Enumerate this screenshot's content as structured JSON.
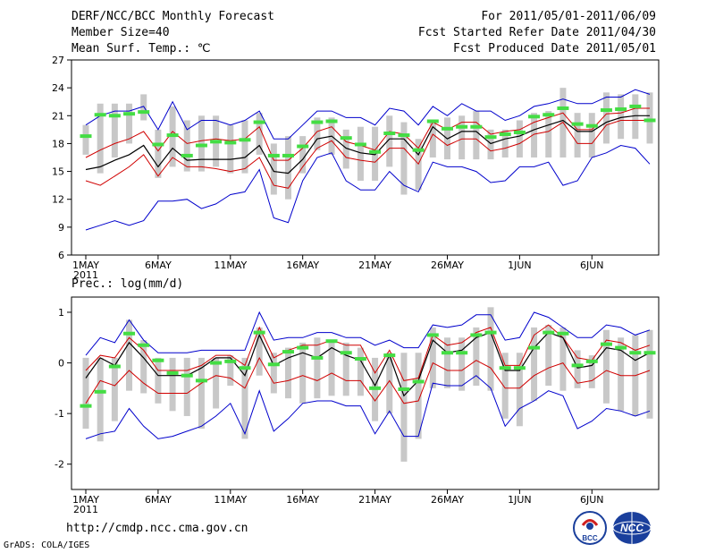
{
  "header": {
    "title": "DERF/NCC/BCC Monthly Forecast",
    "member_size": "Member Size=40",
    "variable_temp": "Mean Surf. Temp.: ℃",
    "period": "For 2011/05/01-2011/06/09",
    "fcst_started": "Fcst Started Refer Date 2011/04/30",
    "fcst_produced": "Fcst Produced Date 2011/05/01"
  },
  "footer": {
    "url": "http://cmdp.ncc.cma.gov.cn",
    "grads": "GrADS: COLA/IGES",
    "logo_bcc_text": "BCC",
    "logo_ncc_text": "NCC"
  },
  "colors": {
    "box": "#c8c8c8",
    "obs": "#44dd44",
    "mean": "#000000",
    "std": "#d00000",
    "envelope": "#0000cc"
  },
  "chart_data": [
    {
      "type": "line",
      "title": "Mean Surf. Temp.: ℃",
      "ylim": [
        6,
        27
      ],
      "yticks": [
        "6",
        "9",
        "12",
        "15",
        "18",
        "21",
        "24",
        "27"
      ],
      "xticks": [
        "1MAY",
        "6MAY",
        "11MAY",
        "16MAY",
        "21MAY",
        "26MAY",
        "1JUN",
        "6JUN"
      ],
      "xtick_sub": "2011",
      "days": 40,
      "series": [
        {
          "name": "ensemble-max",
          "values": [
            20,
            21,
            21.5,
            21.5,
            22,
            19.5,
            22.5,
            19.5,
            20.5,
            20.5,
            20,
            20.5,
            21.5,
            18.5,
            18.5,
            20,
            21.5,
            21.5,
            20.8,
            20.8,
            20,
            21.8,
            21.5,
            20,
            22,
            21,
            22.3,
            21.5,
            21.5,
            20.5,
            21,
            22,
            22.3,
            22.8,
            22.3,
            22.3,
            23,
            23,
            23.8,
            23.3
          ]
        },
        {
          "name": "ensemble-mean-plus-std",
          "values": [
            16.5,
            17.3,
            18,
            18.5,
            19.3,
            17.2,
            19.3,
            18,
            18.3,
            18.5,
            18.3,
            18.5,
            19.8,
            16.2,
            16.2,
            17.5,
            19.3,
            19.8,
            18.2,
            17.8,
            17.3,
            19.3,
            19,
            17.5,
            20.3,
            19.5,
            20.3,
            20.3,
            19,
            19.3,
            19.5,
            20.3,
            20.8,
            21.3,
            19.5,
            19.5,
            21.2,
            21.3,
            21.8,
            21.8
          ]
        },
        {
          "name": "ensemble-mean",
          "values": [
            15.2,
            15.5,
            16.2,
            16.8,
            17.8,
            15.5,
            17.5,
            16.2,
            16.3,
            16.3,
            16.3,
            16.5,
            17.8,
            15,
            14.8,
            16.3,
            18.5,
            18.8,
            17.5,
            17,
            16.8,
            18.5,
            18.5,
            16.8,
            19.8,
            18.5,
            19.3,
            19.3,
            18,
            18.5,
            18.8,
            19.5,
            20,
            20.5,
            19.3,
            19.3,
            20.3,
            20.8,
            21,
            21
          ]
        },
        {
          "name": "ensemble-mean-minus-std",
          "values": [
            14,
            13.5,
            14.5,
            15.5,
            16.8,
            14.5,
            16.5,
            15.5,
            15.5,
            15.3,
            15,
            15.3,
            16.5,
            13.5,
            13.2,
            15.5,
            17.5,
            18.3,
            16.5,
            16.2,
            16,
            17.5,
            17.5,
            15.8,
            19,
            17.8,
            18.5,
            18.5,
            17.2,
            17.5,
            18,
            19,
            19.3,
            20.3,
            18,
            18,
            20,
            20.5,
            20.5,
            20.5
          ]
        },
        {
          "name": "ensemble-min",
          "values": [
            8.7,
            9.2,
            9.7,
            9.2,
            9.7,
            11.8,
            11.8,
            12,
            11,
            11.5,
            12.5,
            12.8,
            15.2,
            10,
            9.5,
            14,
            16.5,
            17,
            14,
            13,
            13,
            15,
            13.5,
            12.8,
            16,
            15.5,
            15.5,
            15,
            13.8,
            14,
            15.5,
            15.5,
            16,
            13.5,
            14,
            16.5,
            17,
            17.8,
            17.5,
            15.8
          ]
        },
        {
          "name": "box-high",
          "values": [
            20,
            22.3,
            22.3,
            22.3,
            23.3,
            19.5,
            22,
            20.5,
            21,
            21,
            20,
            20.5,
            21.3,
            18,
            18.8,
            18.8,
            20.8,
            20.8,
            19.5,
            19.8,
            19.8,
            21,
            20.3,
            18.5,
            20.5,
            20.8,
            21,
            21.5,
            19.5,
            19.5,
            20.5,
            21.3,
            21.5,
            24,
            21.3,
            21.3,
            23.5,
            23.3,
            23.3,
            23.5
          ]
        },
        {
          "name": "box-low",
          "values": [
            16.8,
            14.8,
            16.5,
            18,
            20.5,
            14.3,
            15.5,
            15,
            15,
            15.5,
            14.8,
            14.8,
            16.8,
            12.5,
            12,
            14.8,
            17.3,
            16.8,
            15.3,
            14,
            14,
            15.5,
            12.5,
            13,
            16.5,
            16.3,
            16.3,
            16.3,
            16.3,
            16.5,
            16.5,
            16.5,
            16.5,
            16.5,
            16.5,
            16.5,
            18,
            18.5,
            18.5,
            18
          ]
        },
        {
          "name": "observed",
          "values": [
            18.8,
            21.1,
            21,
            21.2,
            21.4,
            17.9,
            18.9,
            16.7,
            17.8,
            18.2,
            18.1,
            18.4,
            20.3,
            16.7,
            16.7,
            17.7,
            20.3,
            20.4,
            18.6,
            17.9,
            17.1,
            19.1,
            18.9,
            17.3,
            20.4,
            19.6,
            19.8,
            19.8,
            18.7,
            19,
            19.2,
            20.9,
            21.1,
            21.8,
            20.1,
            19.9,
            21.6,
            21.7,
            22,
            20.5
          ]
        }
      ]
    },
    {
      "type": "line",
      "title": "Prec.: log(mm/d)",
      "ylim": [
        -2.5,
        1.3
      ],
      "yticks": [
        "-2",
        "-1",
        "0",
        "1"
      ],
      "xticks": [
        "1MAY",
        "6MAY",
        "11MAY",
        "16MAY",
        "21MAY",
        "26MAY",
        "1JUN",
        "6JUN"
      ],
      "xtick_sub": "2011",
      "days": 40,
      "series": [
        {
          "name": "ensemble-max",
          "values": [
            0.15,
            0.5,
            0.4,
            0.85,
            0.45,
            0.2,
            0.2,
            0.2,
            0.25,
            0.25,
            0.25,
            0.25,
            1,
            0.45,
            0.5,
            0.5,
            0.6,
            0.6,
            0.5,
            0.5,
            0.35,
            0.45,
            0.3,
            0.3,
            0.75,
            0.7,
            0.75,
            0.95,
            0.95,
            0.45,
            0.5,
            1,
            0.9,
            0.7,
            0.5,
            0.5,
            0.75,
            0.7,
            0.55,
            0.65
          ]
        },
        {
          "name": "ensemble-mean-plus-std",
          "values": [
            -0.15,
            0.15,
            0.1,
            0.5,
            0.25,
            -0.15,
            -0.15,
            -0.15,
            -0.05,
            0.15,
            0.15,
            -0.05,
            0.7,
            0.1,
            0.25,
            0.35,
            0.35,
            0.45,
            0.35,
            0.35,
            -0.2,
            0.25,
            -0.35,
            -0.3,
            0.55,
            0.35,
            0.4,
            0.6,
            0.7,
            -0.05,
            -0.05,
            0.55,
            0.75,
            0.5,
            0.1,
            0.05,
            0.45,
            0.4,
            0.25,
            0.35
          ]
        },
        {
          "name": "ensemble-mean",
          "values": [
            -0.3,
            0.1,
            -0.05,
            0.4,
            0.1,
            -0.25,
            -0.25,
            -0.25,
            -0.1,
            0.1,
            0.1,
            -0.25,
            0.55,
            -0.05,
            0.1,
            0.2,
            0.1,
            0.3,
            0.15,
            0.05,
            -0.45,
            0.15,
            -0.65,
            -0.35,
            0.45,
            0.2,
            0.25,
            0.5,
            0.6,
            -0.15,
            -0.15,
            0.3,
            0.6,
            0.5,
            -0.1,
            -0.05,
            0.3,
            0.25,
            0.05,
            0.2
          ]
        },
        {
          "name": "ensemble-mean-minus-std",
          "values": [
            -0.8,
            -0.35,
            -0.45,
            -0.15,
            -0.4,
            -0.6,
            -0.6,
            -0.6,
            -0.4,
            -0.25,
            -0.3,
            -0.5,
            0.1,
            -0.4,
            -0.35,
            -0.25,
            -0.35,
            -0.2,
            -0.35,
            -0.35,
            -0.75,
            -0.35,
            -0.8,
            -0.75,
            0,
            -0.15,
            -0.15,
            0.05,
            -0.1,
            -0.5,
            -0.5,
            -0.25,
            -0.1,
            0,
            -0.4,
            -0.35,
            -0.15,
            -0.25,
            -0.25,
            -0.15
          ]
        },
        {
          "name": "ensemble-min",
          "values": [
            -1.5,
            -1.4,
            -1.35,
            -0.9,
            -1.25,
            -1.5,
            -1.45,
            -1.35,
            -1.25,
            -1.05,
            -0.8,
            -1.4,
            -0.55,
            -1.35,
            -1.1,
            -0.8,
            -0.75,
            -0.75,
            -0.85,
            -0.85,
            -1.4,
            -0.95,
            -1.45,
            -1.45,
            -0.4,
            -0.45,
            -0.45,
            -0.25,
            -0.5,
            -1.25,
            -0.9,
            -0.75,
            -0.55,
            -0.65,
            -1.3,
            -1.15,
            -0.9,
            -0.95,
            -1.05,
            -0.95
          ]
        },
        {
          "name": "box-high",
          "values": [
            0.1,
            0.1,
            0.1,
            0.85,
            0.45,
            0.1,
            0.1,
            0.1,
            0.1,
            0.1,
            0.15,
            0.1,
            0.7,
            0.2,
            0.3,
            0.4,
            0.5,
            0.4,
            0.4,
            0.3,
            0.1,
            0.2,
            0.2,
            0.2,
            0.7,
            0.5,
            0.5,
            0.7,
            1.1,
            0.2,
            0.2,
            0.7,
            0.75,
            0.7,
            0.25,
            0.15,
            0.65,
            0.5,
            0.55,
            0.65
          ]
        },
        {
          "name": "box-low",
          "values": [
            -1.3,
            -1.55,
            -1.15,
            -0.55,
            -0.6,
            -0.8,
            -0.95,
            -1.05,
            -1.3,
            -0.9,
            -0.45,
            -1.5,
            -0.25,
            -0.6,
            -0.7,
            -0.8,
            -0.7,
            -0.65,
            -0.65,
            -0.65,
            -1.15,
            -1,
            -1.95,
            -1.5,
            -0.5,
            -0.5,
            -0.55,
            -0.45,
            -0.55,
            -1.1,
            -1.25,
            -0.75,
            -0.45,
            -0.55,
            -0.5,
            -0.5,
            -0.8,
            -0.95,
            -1.05,
            -1.1
          ]
        },
        {
          "name": "observed",
          "values": [
            -0.85,
            -0.57,
            -0.07,
            0.58,
            0.35,
            0.05,
            -0.2,
            -0.25,
            -0.35,
            0,
            0.03,
            -0.1,
            0.6,
            -0.03,
            0.22,
            0.3,
            0.1,
            0.43,
            0.2,
            0.08,
            -0.5,
            0.15,
            -0.52,
            -0.37,
            0.55,
            0.2,
            0.2,
            0.55,
            0.6,
            -0.1,
            -0.1,
            0.3,
            0.6,
            0.58,
            -0.05,
            0.03,
            0.37,
            0.3,
            0.2,
            0.2
          ]
        }
      ]
    }
  ]
}
